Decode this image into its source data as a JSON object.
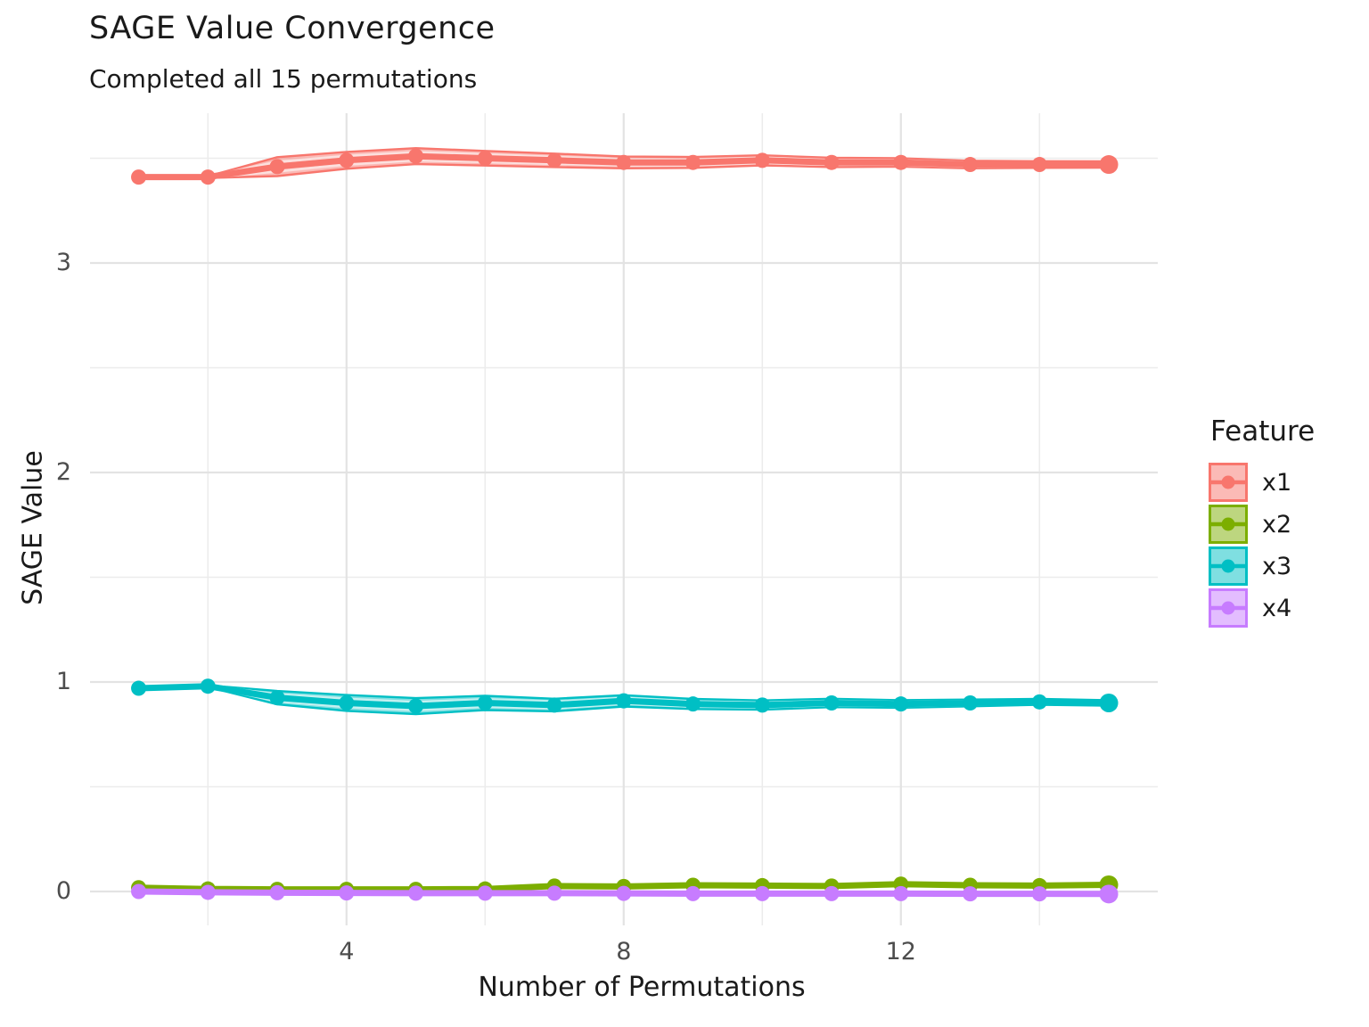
{
  "chart_data": {
    "type": "line",
    "title": "SAGE Value Convergence",
    "subtitle": "Completed all 15 permutations",
    "xlabel": "Number of Permutations",
    "ylabel": "SAGE Value",
    "legend": {
      "title": "Feature",
      "position": "right",
      "entries": [
        "x1",
        "x2",
        "x3",
        "x4"
      ]
    },
    "background": "#FFFFFF",
    "grid": {
      "major_color": "#E3E3E3",
      "minor_color": "#ECECEC",
      "on": true
    },
    "axes": {
      "x_ticks": [
        4,
        8,
        12
      ],
      "x_minor_ticks": [
        2,
        6,
        10,
        14
      ],
      "y_ticks": [
        0,
        1,
        2,
        3
      ],
      "y_minor_ticks": [
        0.5,
        1.5,
        2.5,
        3.5
      ],
      "xlim": [
        0.3,
        15.7
      ],
      "ylim": [
        -0.16,
        3.7
      ]
    },
    "x": [
      1,
      2,
      3,
      4,
      5,
      6,
      7,
      8,
      9,
      10,
      11,
      12,
      13,
      14,
      15
    ],
    "series": [
      {
        "name": "x1",
        "color": "#F8766D",
        "values": [
          3.41,
          3.41,
          3.46,
          3.49,
          3.51,
          3.5,
          3.49,
          3.48,
          3.48,
          3.49,
          3.48,
          3.48,
          3.47,
          3.47,
          3.47
        ],
        "ci": [
          0.004,
          0.004,
          0.045,
          0.04,
          0.038,
          0.035,
          0.032,
          0.028,
          0.026,
          0.024,
          0.022,
          0.02,
          0.018,
          0.016,
          0.015
        ]
      },
      {
        "name": "x2",
        "color": "#7CAE00",
        "values": [
          0.018,
          0.012,
          0.01,
          0.01,
          0.01,
          0.012,
          0.026,
          0.024,
          0.03,
          0.028,
          0.026,
          0.035,
          0.03,
          0.028,
          0.032
        ],
        "ci": [
          0.003,
          0.003,
          0.003,
          0.003,
          0.003,
          0.004,
          0.006,
          0.006,
          0.007,
          0.007,
          0.007,
          0.008,
          0.008,
          0.008,
          0.008
        ]
      },
      {
        "name": "x3",
        "color": "#00BFC4",
        "values": [
          0.97,
          0.98,
          0.925,
          0.9,
          0.885,
          0.9,
          0.89,
          0.91,
          0.895,
          0.89,
          0.9,
          0.895,
          0.9,
          0.905,
          0.9
        ],
        "ci": [
          0.004,
          0.004,
          0.032,
          0.038,
          0.038,
          0.034,
          0.03,
          0.027,
          0.024,
          0.022,
          0.02,
          0.018,
          0.016,
          0.014,
          0.013
        ]
      },
      {
        "name": "x4",
        "color": "#C77CFF",
        "values": [
          0,
          -0.004,
          -0.006,
          -0.007,
          -0.008,
          -0.008,
          -0.008,
          -0.009,
          -0.01,
          -0.01,
          -0.01,
          -0.01,
          -0.011,
          -0.011,
          -0.012
        ],
        "ci": [
          0.002,
          0.002,
          0.003,
          0.003,
          0.003,
          0.003,
          0.003,
          0.003,
          0.003,
          0.003,
          0.003,
          0.003,
          0.003,
          0.003,
          0.003
        ]
      }
    ]
  }
}
